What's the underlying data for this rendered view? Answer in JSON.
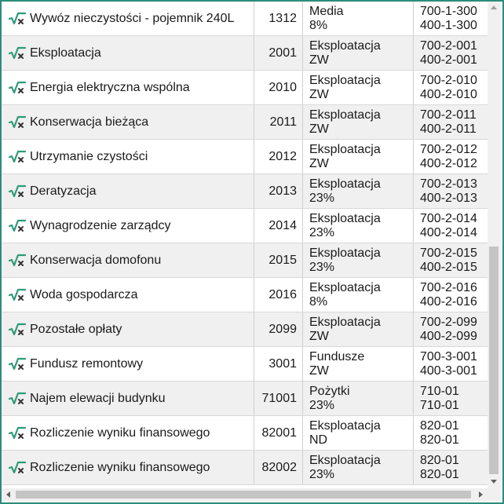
{
  "rows": [
    {
      "name": "Wywóz nieczystości - pojemnik 240L",
      "code": "1312",
      "category": "Media",
      "rate": "8%",
      "account_a": "700-1-300",
      "account_b": "400-1-300"
    },
    {
      "name": "Eksploatacja",
      "code": "2001",
      "category": "Eksploatacja",
      "rate": "ZW",
      "account_a": "700-2-001",
      "account_b": "400-2-001"
    },
    {
      "name": "Energia elektryczna wspólna",
      "code": "2010",
      "category": "Eksploatacja",
      "rate": "ZW",
      "account_a": "700-2-010",
      "account_b": "400-2-010"
    },
    {
      "name": "Konserwacja bieżąca",
      "code": "2011",
      "category": "Eksploatacja",
      "rate": "ZW",
      "account_a": "700-2-011",
      "account_b": "400-2-011"
    },
    {
      "name": "Utrzymanie czystości",
      "code": "2012",
      "category": "Eksploatacja",
      "rate": "ZW",
      "account_a": "700-2-012",
      "account_b": "400-2-012"
    },
    {
      "name": "Deratyzacja",
      "code": "2013",
      "category": "Eksploatacja",
      "rate": "23%",
      "account_a": "700-2-013",
      "account_b": "400-2-013"
    },
    {
      "name": "Wynagrodzenie zarządcy",
      "code": "2014",
      "category": "Eksploatacja",
      "rate": "23%",
      "account_a": "700-2-014",
      "account_b": "400-2-014"
    },
    {
      "name": "Konserwacja domofonu",
      "code": "2015",
      "category": "Eksploatacja",
      "rate": "23%",
      "account_a": "700-2-015",
      "account_b": "400-2-015"
    },
    {
      "name": "Woda gospodarcza",
      "code": "2016",
      "category": "Eksploatacja",
      "rate": "8%",
      "account_a": "700-2-016",
      "account_b": "400-2-016"
    },
    {
      "name": "Pozostałe opłaty",
      "code": "2099",
      "category": "Eksploatacja",
      "rate": "ZW",
      "account_a": "700-2-099",
      "account_b": "400-2-099"
    },
    {
      "name": "Fundusz remontowy",
      "code": "3001",
      "category": "Fundusze",
      "rate": "ZW",
      "account_a": "700-3-001",
      "account_b": "400-3-001"
    },
    {
      "name": "Najem elewacji budynku",
      "code": "71001",
      "category": "Pożytki",
      "rate": "23%",
      "account_a": "710-01",
      "account_b": "710-01"
    },
    {
      "name": "Rozliczenie wyniku finansowego",
      "code": "82001",
      "category": "Eksploatacja",
      "rate": "ND",
      "account_a": "820-01",
      "account_b": "820-01"
    },
    {
      "name": "Rozliczenie wyniku finansowego",
      "code": "82002",
      "category": "Eksploatacja",
      "rate": "23%",
      "account_a": "820-01",
      "account_b": "820-01"
    }
  ],
  "icons": {
    "row_icon": "formula-icon",
    "check_color": "#2e9a7a",
    "x_color": "#333333"
  },
  "colors": {
    "frame_border": "#2e8b7a",
    "row_alt": "#f0f0f0"
  },
  "scrollbars": {
    "vertical_position": 0.55,
    "horizontal_position": 0.0
  }
}
